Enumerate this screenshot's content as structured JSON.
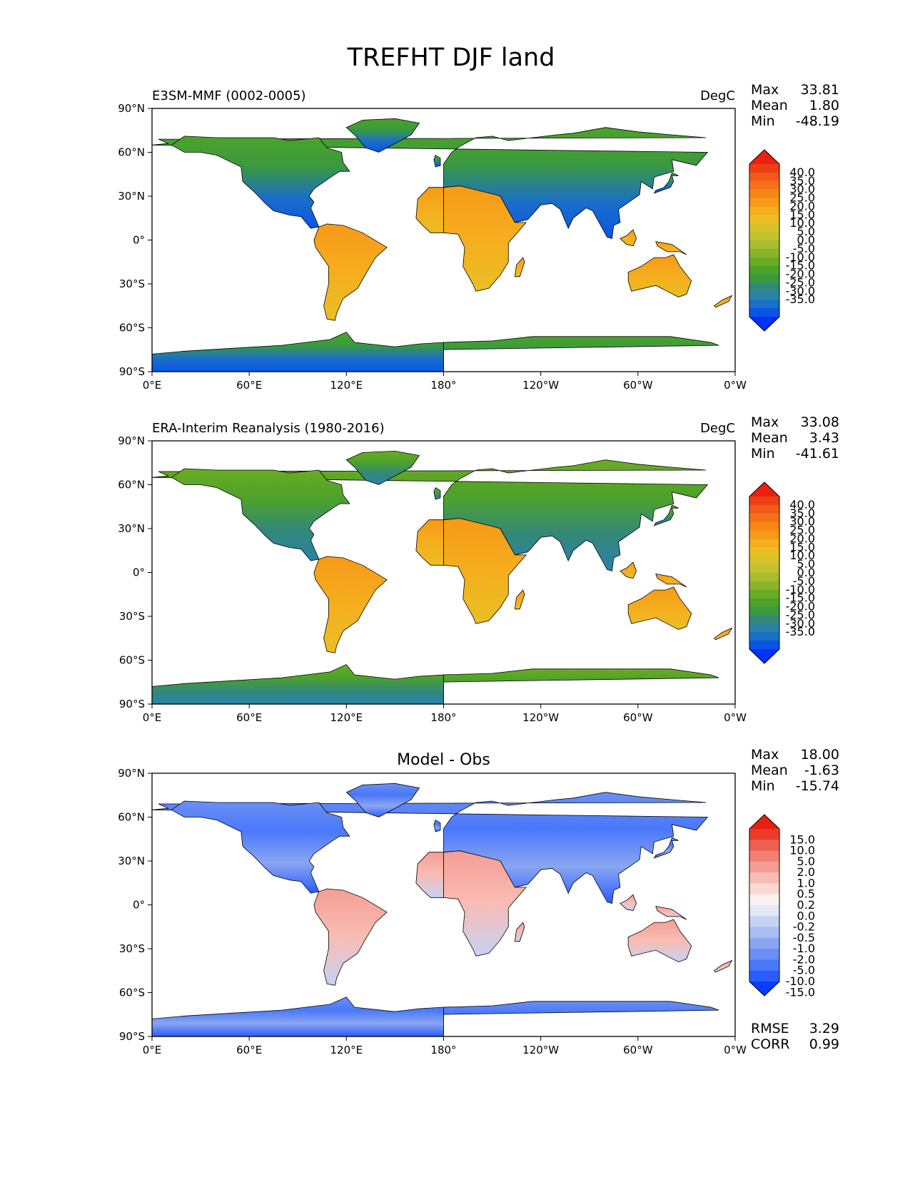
{
  "title": "TREFHT DJF land",
  "panels": [
    {
      "title_left": "E3SM-MMF (0002-0005)",
      "title_center": "",
      "units": "DegC",
      "stats": [
        {
          "label": "Max",
          "value": "33.81"
        },
        {
          "label": "Mean",
          "value": "1.80"
        },
        {
          "label": "Min",
          "value": "-48.19"
        }
      ],
      "colorbar": {
        "colors": [
          "#0032ff",
          "#0a55e6",
          "#1a6fc8",
          "#2a82a8",
          "#33887a",
          "#3a9a3e",
          "#4da22a",
          "#6aab24",
          "#8ab52a",
          "#a8bc2c",
          "#c2c230",
          "#d8c22a",
          "#ebbf24",
          "#f5ae1e",
          "#f79a18",
          "#f78614",
          "#f5701a",
          "#f25a1a",
          "#ee3e14",
          "#ec2010"
        ],
        "labels": [
          "40.0",
          "35.0",
          "30.0",
          "25.0",
          "20.0",
          "15.0",
          "10.0",
          "5.0",
          "0.0",
          "-5.0",
          "-10.0",
          "-15.0",
          "-20.0",
          "-25.0",
          "-30.0",
          "-35.0"
        ]
      },
      "extra_stats": []
    },
    {
      "title_left": "ERA-Interim Reanalysis (1980-2016)",
      "title_center": "",
      "units": "DegC",
      "stats": [
        {
          "label": "Max",
          "value": "33.08"
        },
        {
          "label": "Mean",
          "value": "3.43"
        },
        {
          "label": "Min",
          "value": "-41.61"
        }
      ],
      "colorbar": {
        "colors": [
          "#0032ff",
          "#0a55e6",
          "#1a6fc8",
          "#2a82a8",
          "#33887a",
          "#3a9a3e",
          "#4da22a",
          "#6aab24",
          "#8ab52a",
          "#a8bc2c",
          "#c2c230",
          "#d8c22a",
          "#ebbf24",
          "#f5ae1e",
          "#f79a18",
          "#f78614",
          "#f5701a",
          "#f25a1a",
          "#ee3e14",
          "#ec2010"
        ],
        "labels": [
          "40.0",
          "35.0",
          "30.0",
          "25.0",
          "20.0",
          "15.0",
          "10.0",
          "5.0",
          "0.0",
          "-5.0",
          "-10.0",
          "-15.0",
          "-20.0",
          "-25.0",
          "-30.0",
          "-35.0"
        ]
      },
      "extra_stats": []
    },
    {
      "title_left": "",
      "title_center": "Model - Obs",
      "units": "",
      "stats": [
        {
          "label": "Max",
          "value": "18.00"
        },
        {
          "label": "Mean",
          "value": "-1.63"
        },
        {
          "label": "Min",
          "value": "-15.74"
        }
      ],
      "colorbar": {
        "colors": [
          "#0a3cff",
          "#2a5cff",
          "#4a78fa",
          "#6a8ff5",
          "#8aa6f2",
          "#a9bdf2",
          "#c6d2f5",
          "#e2e8f8",
          "#fbf2f0",
          "#fbd8d2",
          "#f8bcb4",
          "#f59e94",
          "#f28074",
          "#ee6050",
          "#ec3c28",
          "#ea1e0e"
        ],
        "labels": [
          "15.0",
          "10.0",
          "5.0",
          "2.0",
          "1.0",
          "0.5",
          "0.2",
          "0.0",
          "-0.2",
          "-0.5",
          "-1.0",
          "-2.0",
          "-5.0",
          "-10.0",
          "-15.0"
        ]
      },
      "extra_stats": [
        {
          "label": "RMSE",
          "value": "3.29"
        },
        {
          "label": "CORR",
          "value": "0.99"
        }
      ]
    }
  ],
  "x_ticks": [
    "0°E",
    "60°E",
    "120°E",
    "180°",
    "120°W",
    "60°W",
    "0°W"
  ],
  "y_ticks": [
    "90°N",
    "60°N",
    "30°N",
    "0°",
    "30°S",
    "60°S",
    "90°S"
  ],
  "chart_data": {
    "type": "heatmap",
    "title": "TREFHT DJF land",
    "projection": "plate carree, centered on 180°",
    "xlim": [
      0,
      360
    ],
    "ylim": [
      -90,
      90
    ],
    "x_tick_values": [
      0,
      60,
      120,
      180,
      240,
      300,
      360
    ],
    "y_tick_values": [
      90,
      60,
      30,
      0,
      -30,
      -60,
      -90
    ],
    "panels": [
      {
        "name": "E3SM-MMF (0002-0005)",
        "units": "DegC",
        "max": 33.81,
        "mean": 1.8,
        "min": -48.19,
        "colorbar_levels": [
          -35,
          -30,
          -25,
          -20,
          -15,
          -10,
          -5,
          0,
          5,
          10,
          15,
          20,
          25,
          30,
          35,
          40
        ],
        "extend": "both"
      },
      {
        "name": "ERA-Interim Reanalysis (1980-2016)",
        "units": "DegC",
        "max": 33.08,
        "mean": 3.43,
        "min": -41.61,
        "colorbar_levels": [
          -35,
          -30,
          -25,
          -20,
          -15,
          -10,
          -5,
          0,
          5,
          10,
          15,
          20,
          25,
          30,
          35,
          40
        ],
        "extend": "both"
      },
      {
        "name": "Model - Obs",
        "units": "",
        "max": 18.0,
        "mean": -1.63,
        "min": -15.74,
        "rmse": 3.29,
        "corr": 0.99,
        "colorbar_levels": [
          -15,
          -10,
          -5,
          -2,
          -1,
          -0.5,
          -0.2,
          0,
          0.2,
          0.5,
          1,
          2,
          5,
          10,
          15
        ],
        "extend": "both"
      }
    ]
  }
}
